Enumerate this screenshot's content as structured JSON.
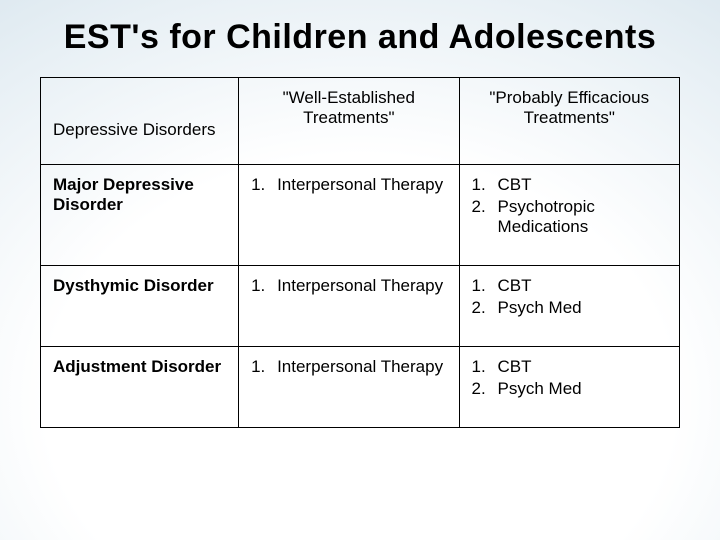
{
  "title": "EST's for Children and Adolescents",
  "table": {
    "corner_label": "Depressive Disorders",
    "col1_header": "\"Well-Established Treatments\"",
    "col2_header": "\"Probably Efficacious Treatments\"",
    "rows": [
      {
        "label": "Major Depressive Disorder",
        "col1": [
          {
            "n": "1.",
            "t": "Interpersonal Therapy"
          }
        ],
        "col2": [
          {
            "n": "1.",
            "t": "CBT"
          },
          {
            "n": "2.",
            "t": "Psychotropic Medications"
          }
        ]
      },
      {
        "label": "Dysthymic Disorder",
        "col1": [
          {
            "n": "1.",
            "t": "Interpersonal Therapy"
          }
        ],
        "col2": [
          {
            "n": "1.",
            "t": "CBT"
          },
          {
            "n": "2.",
            "t": "Psych Med"
          }
        ]
      },
      {
        "label": "Adjustment Disorder",
        "col1": [
          {
            "n": "1.",
            "t": "Interpersonal Therapy"
          }
        ],
        "col2": [
          {
            "n": "1.",
            "t": "CBT"
          },
          {
            "n": "2.",
            "t": "Psych Med"
          }
        ]
      }
    ]
  },
  "style": {
    "title_fontsize": 34,
    "body_fontsize": 17,
    "border_color": "#000000",
    "text_color": "#000000",
    "bg_gradient_inner": "#ffffff",
    "bg_gradient_outer": "#c5d8e4"
  }
}
